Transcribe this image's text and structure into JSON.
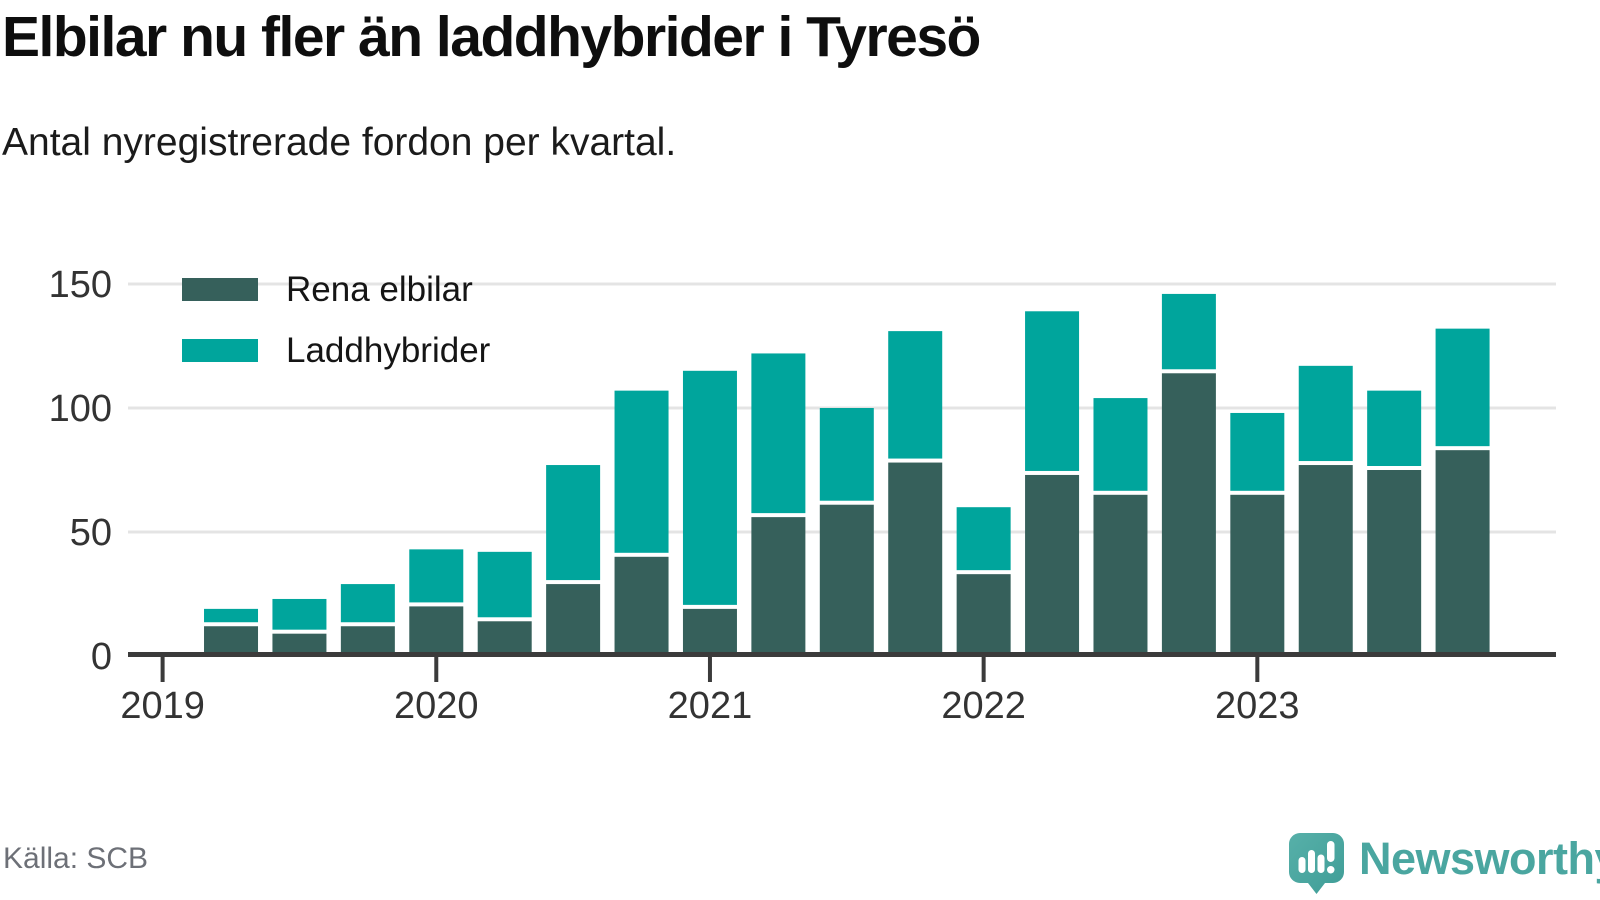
{
  "header": {
    "title": "Elbilar nu fler än laddhybrider i Tyresö",
    "subtitle": "Antal nyregistrerade fordon per kvartal."
  },
  "legend": {
    "items": [
      {
        "label": "Rena elbilar",
        "color_key": "ev"
      },
      {
        "label": "Laddhybrider",
        "color_key": "phev"
      }
    ]
  },
  "footer": {
    "source": "Källa: SCB",
    "brand": "Newsworthy",
    "brand_icon": "newsworthy-speech-bubble-chart-icon"
  },
  "colors": {
    "ev": "#36605b",
    "phev": "#00a59c",
    "grid": "#e4e4e4",
    "axis": "#3b3b3b",
    "tick_text": "#333333",
    "brand": "#4aa6a0",
    "source_text": "#6d7077"
  },
  "chart_data": {
    "type": "bar",
    "stacked": true,
    "title": "Elbilar nu fler än laddhybrider i Tyresö",
    "subtitle": "Antal nyregistrerade fordon per kvartal.",
    "xlabel": "",
    "ylabel": "",
    "grid": true,
    "legend_position": "top-left",
    "ylim": [
      0,
      155
    ],
    "y_ticks": [
      0,
      50,
      100,
      150
    ],
    "x_tick_labels": [
      "2019",
      "2020",
      "2021",
      "2022",
      "2023"
    ],
    "categories": [
      "2019 Q2",
      "2019 Q3",
      "2019 Q4",
      "2020 Q1",
      "2020 Q2",
      "2020 Q3",
      "2020 Q4",
      "2021 Q1",
      "2021 Q2",
      "2021 Q3",
      "2021 Q4",
      "2022 Q1",
      "2022 Q2",
      "2022 Q3",
      "2022 Q4",
      "2023 Q1",
      "2023 Q2",
      "2023 Q3",
      "2023 Q4"
    ],
    "series": [
      {
        "name": "Rena elbilar",
        "values": [
          12,
          9,
          12,
          20,
          14,
          29,
          40,
          19,
          56,
          61,
          78,
          33,
          73,
          65,
          114,
          65,
          77,
          75,
          83
        ]
      },
      {
        "name": "Laddhybrider",
        "values": [
          7,
          14,
          17,
          23,
          28,
          48,
          67,
          96,
          66,
          39,
          53,
          27,
          66,
          39,
          32,
          33,
          40,
          32,
          49
        ]
      }
    ]
  }
}
